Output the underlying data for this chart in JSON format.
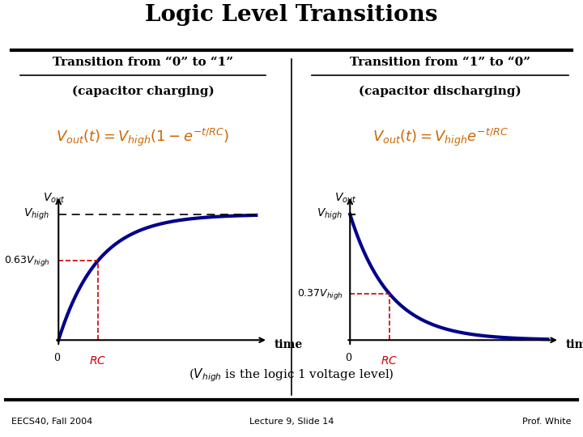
{
  "title": "Logic Level Transitions",
  "left_title": "Transition from “0” to “1”",
  "left_subtitle": "(capacitor charging)",
  "left_formula": "$V_{out}(t) = V_{high}\\left(1 - e^{-t/RC}\\right)$",
  "left_vout_label": "$V_{out}$",
  "left_vhigh_label": "$V_{high}$",
  "left_063_label": "$0.63V_{high}$",
  "left_time_label": "time",
  "left_rc_label": "$RC$",
  "left_zero_label": "0",
  "right_title": "Transition from “1” to “0”",
  "right_subtitle": "(capacitor discharging)",
  "right_formula": "$V_{out}(t) = V_{high}e^{-t/RC}$",
  "right_vout_label": "$V_{out}$",
  "right_vhigh_label": "$V_{high}$",
  "right_037_label": "$0.37V_{high}$",
  "right_time_label": "time",
  "right_rc_label": "$RC$",
  "right_zero_label": "0",
  "bottom_note": "($V_{high}$ is the logic 1 voltage level)",
  "footer_left": "EECS40, Fall 2004",
  "footer_center": "Lecture 9, Slide 14",
  "footer_right": "Prof. White",
  "curve_color": "#00008B",
  "dashed_color": "#CC0000",
  "bg_color": "#FFFFFF",
  "title_color": "#000000",
  "curve_linewidth": 3.0,
  "dashed_linewidth": 1.2
}
